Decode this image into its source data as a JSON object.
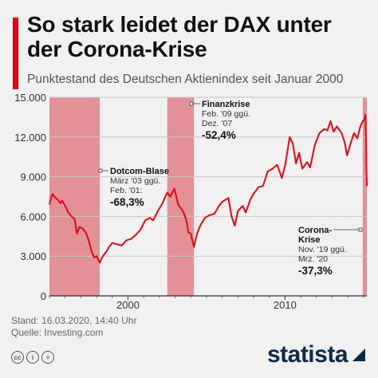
{
  "header": {
    "title": "So stark leidet der DAX unter der Corona-Krise",
    "subtitle": "Punktestand des Deutschen Aktienindex seit Januar 2000"
  },
  "footer": {
    "stand": "Stand: 16.03.2020, 14:40 Uhr",
    "quelle": "Quelle: Investing.com",
    "brand": "statista",
    "cc_icons": [
      "cc",
      "i",
      "="
    ]
  },
  "colors": {
    "line": "#e30613",
    "shade": "#e07f86",
    "accent": "#e30613",
    "brand": "#0e2a4a"
  },
  "chart_data": {
    "type": "line",
    "title": "So stark leidet der DAX unter der Corona-Krise",
    "subtitle": "Punktestand des Deutschen Aktienindex seit Januar 2000",
    "xlim": [
      2000.0,
      2020.21
    ],
    "ylim": [
      0,
      15000
    ],
    "yticks": [
      0,
      3000,
      6000,
      9000,
      12000,
      15000
    ],
    "ytick_labels": [
      "0",
      "3.000",
      "6.000",
      "9.000",
      "12.000",
      "15.000"
    ],
    "xtick_labels": [
      {
        "x": 2005,
        "label": "2000"
      },
      {
        "x": 2015,
        "label": "2010"
      }
    ],
    "grid": "horizontal",
    "series": [
      {
        "values": [
          [
            2000.0,
            6900
          ],
          [
            2000.1,
            7400
          ],
          [
            2000.2,
            7700
          ],
          [
            2000.3,
            7500
          ],
          [
            2000.5,
            7300
          ],
          [
            2000.7,
            7000
          ],
          [
            2000.8,
            7200
          ],
          [
            2001.0,
            6800
          ],
          [
            2001.2,
            6300
          ],
          [
            2001.4,
            6000
          ],
          [
            2001.6,
            5800
          ],
          [
            2001.75,
            4700
          ],
          [
            2001.9,
            5200
          ],
          [
            2002.1,
            5100
          ],
          [
            2002.3,
            4800
          ],
          [
            2002.5,
            4200
          ],
          [
            2002.7,
            3300
          ],
          [
            2002.85,
            2900
          ],
          [
            2003.0,
            3000
          ],
          [
            2003.2,
            2500
          ],
          [
            2003.4,
            3000
          ],
          [
            2003.6,
            3300
          ],
          [
            2003.8,
            3700
          ],
          [
            2004.0,
            4000
          ],
          [
            2004.3,
            3900
          ],
          [
            2004.6,
            3800
          ],
          [
            2004.9,
            4200
          ],
          [
            2005.2,
            4300
          ],
          [
            2005.5,
            4600
          ],
          [
            2005.8,
            5000
          ],
          [
            2006.1,
            5700
          ],
          [
            2006.4,
            5900
          ],
          [
            2006.6,
            5700
          ],
          [
            2006.9,
            6400
          ],
          [
            2007.2,
            7000
          ],
          [
            2007.5,
            7800
          ],
          [
            2007.7,
            7500
          ],
          [
            2007.95,
            8100
          ],
          [
            2008.2,
            6900
          ],
          [
            2008.5,
            6400
          ],
          [
            2008.7,
            5800
          ],
          [
            2008.85,
            4800
          ],
          [
            2009.0,
            4700
          ],
          [
            2009.2,
            3700
          ],
          [
            2009.4,
            4700
          ],
          [
            2009.6,
            5300
          ],
          [
            2009.9,
            5900
          ],
          [
            2010.2,
            6100
          ],
          [
            2010.5,
            6200
          ],
          [
            2010.8,
            6800
          ],
          [
            2011.0,
            7100
          ],
          [
            2011.4,
            7400
          ],
          [
            2011.6,
            6000
          ],
          [
            2011.8,
            5300
          ],
          [
            2012.0,
            6400
          ],
          [
            2012.3,
            6800
          ],
          [
            2012.5,
            6300
          ],
          [
            2012.8,
            7300
          ],
          [
            2013.0,
            7700
          ],
          [
            2013.3,
            8200
          ],
          [
            2013.6,
            8300
          ],
          [
            2013.9,
            9400
          ],
          [
            2014.2,
            9600
          ],
          [
            2014.5,
            9900
          ],
          [
            2014.8,
            8900
          ],
          [
            2015.0,
            9800
          ],
          [
            2015.3,
            12000
          ],
          [
            2015.5,
            11500
          ],
          [
            2015.7,
            10000
          ],
          [
            2015.9,
            10800
          ],
          [
            2016.1,
            9600
          ],
          [
            2016.4,
            10100
          ],
          [
            2016.6,
            9700
          ],
          [
            2016.9,
            11400
          ],
          [
            2017.2,
            12300
          ],
          [
            2017.5,
            12600
          ],
          [
            2017.7,
            12500
          ],
          [
            2017.9,
            13200
          ],
          [
            2018.1,
            12400
          ],
          [
            2018.3,
            12800
          ],
          [
            2018.6,
            12300
          ],
          [
            2018.8,
            11600
          ],
          [
            2018.95,
            10600
          ],
          [
            2019.2,
            11600
          ],
          [
            2019.4,
            12300
          ],
          [
            2019.6,
            11900
          ],
          [
            2019.8,
            12800
          ],
          [
            2019.95,
            13200
          ],
          [
            2020.05,
            13300
          ],
          [
            2020.12,
            13700
          ],
          [
            2020.16,
            11800
          ],
          [
            2020.19,
            9300
          ],
          [
            2020.21,
            8300
          ]
        ]
      }
    ],
    "shaded_periods": [
      {
        "label": "Dotcom-Blase",
        "from": 2000.0,
        "to": 2003.2
      },
      {
        "label": "Finanzkrise",
        "from": 2007.5,
        "to": 2009.2
      },
      {
        "label": "Corona-Krise",
        "from": 2019.95,
        "to": 2020.21
      }
    ],
    "annotations": [
      {
        "title": "Dotcom-Blase",
        "detail1": "März '03 ggü.",
        "detail2": "Feb. '01:",
        "value": "-68,3%"
      },
      {
        "title": "Finanzkrise",
        "detail1": "Feb. '09 ggü.",
        "detail2": "Dez. '07",
        "value": "-52,4%"
      },
      {
        "title": "Corona-\nKrise",
        "detail1": "Nov. '19 ggü.",
        "detail2": "Mrz. '20",
        "value": "-37,3%"
      }
    ]
  }
}
